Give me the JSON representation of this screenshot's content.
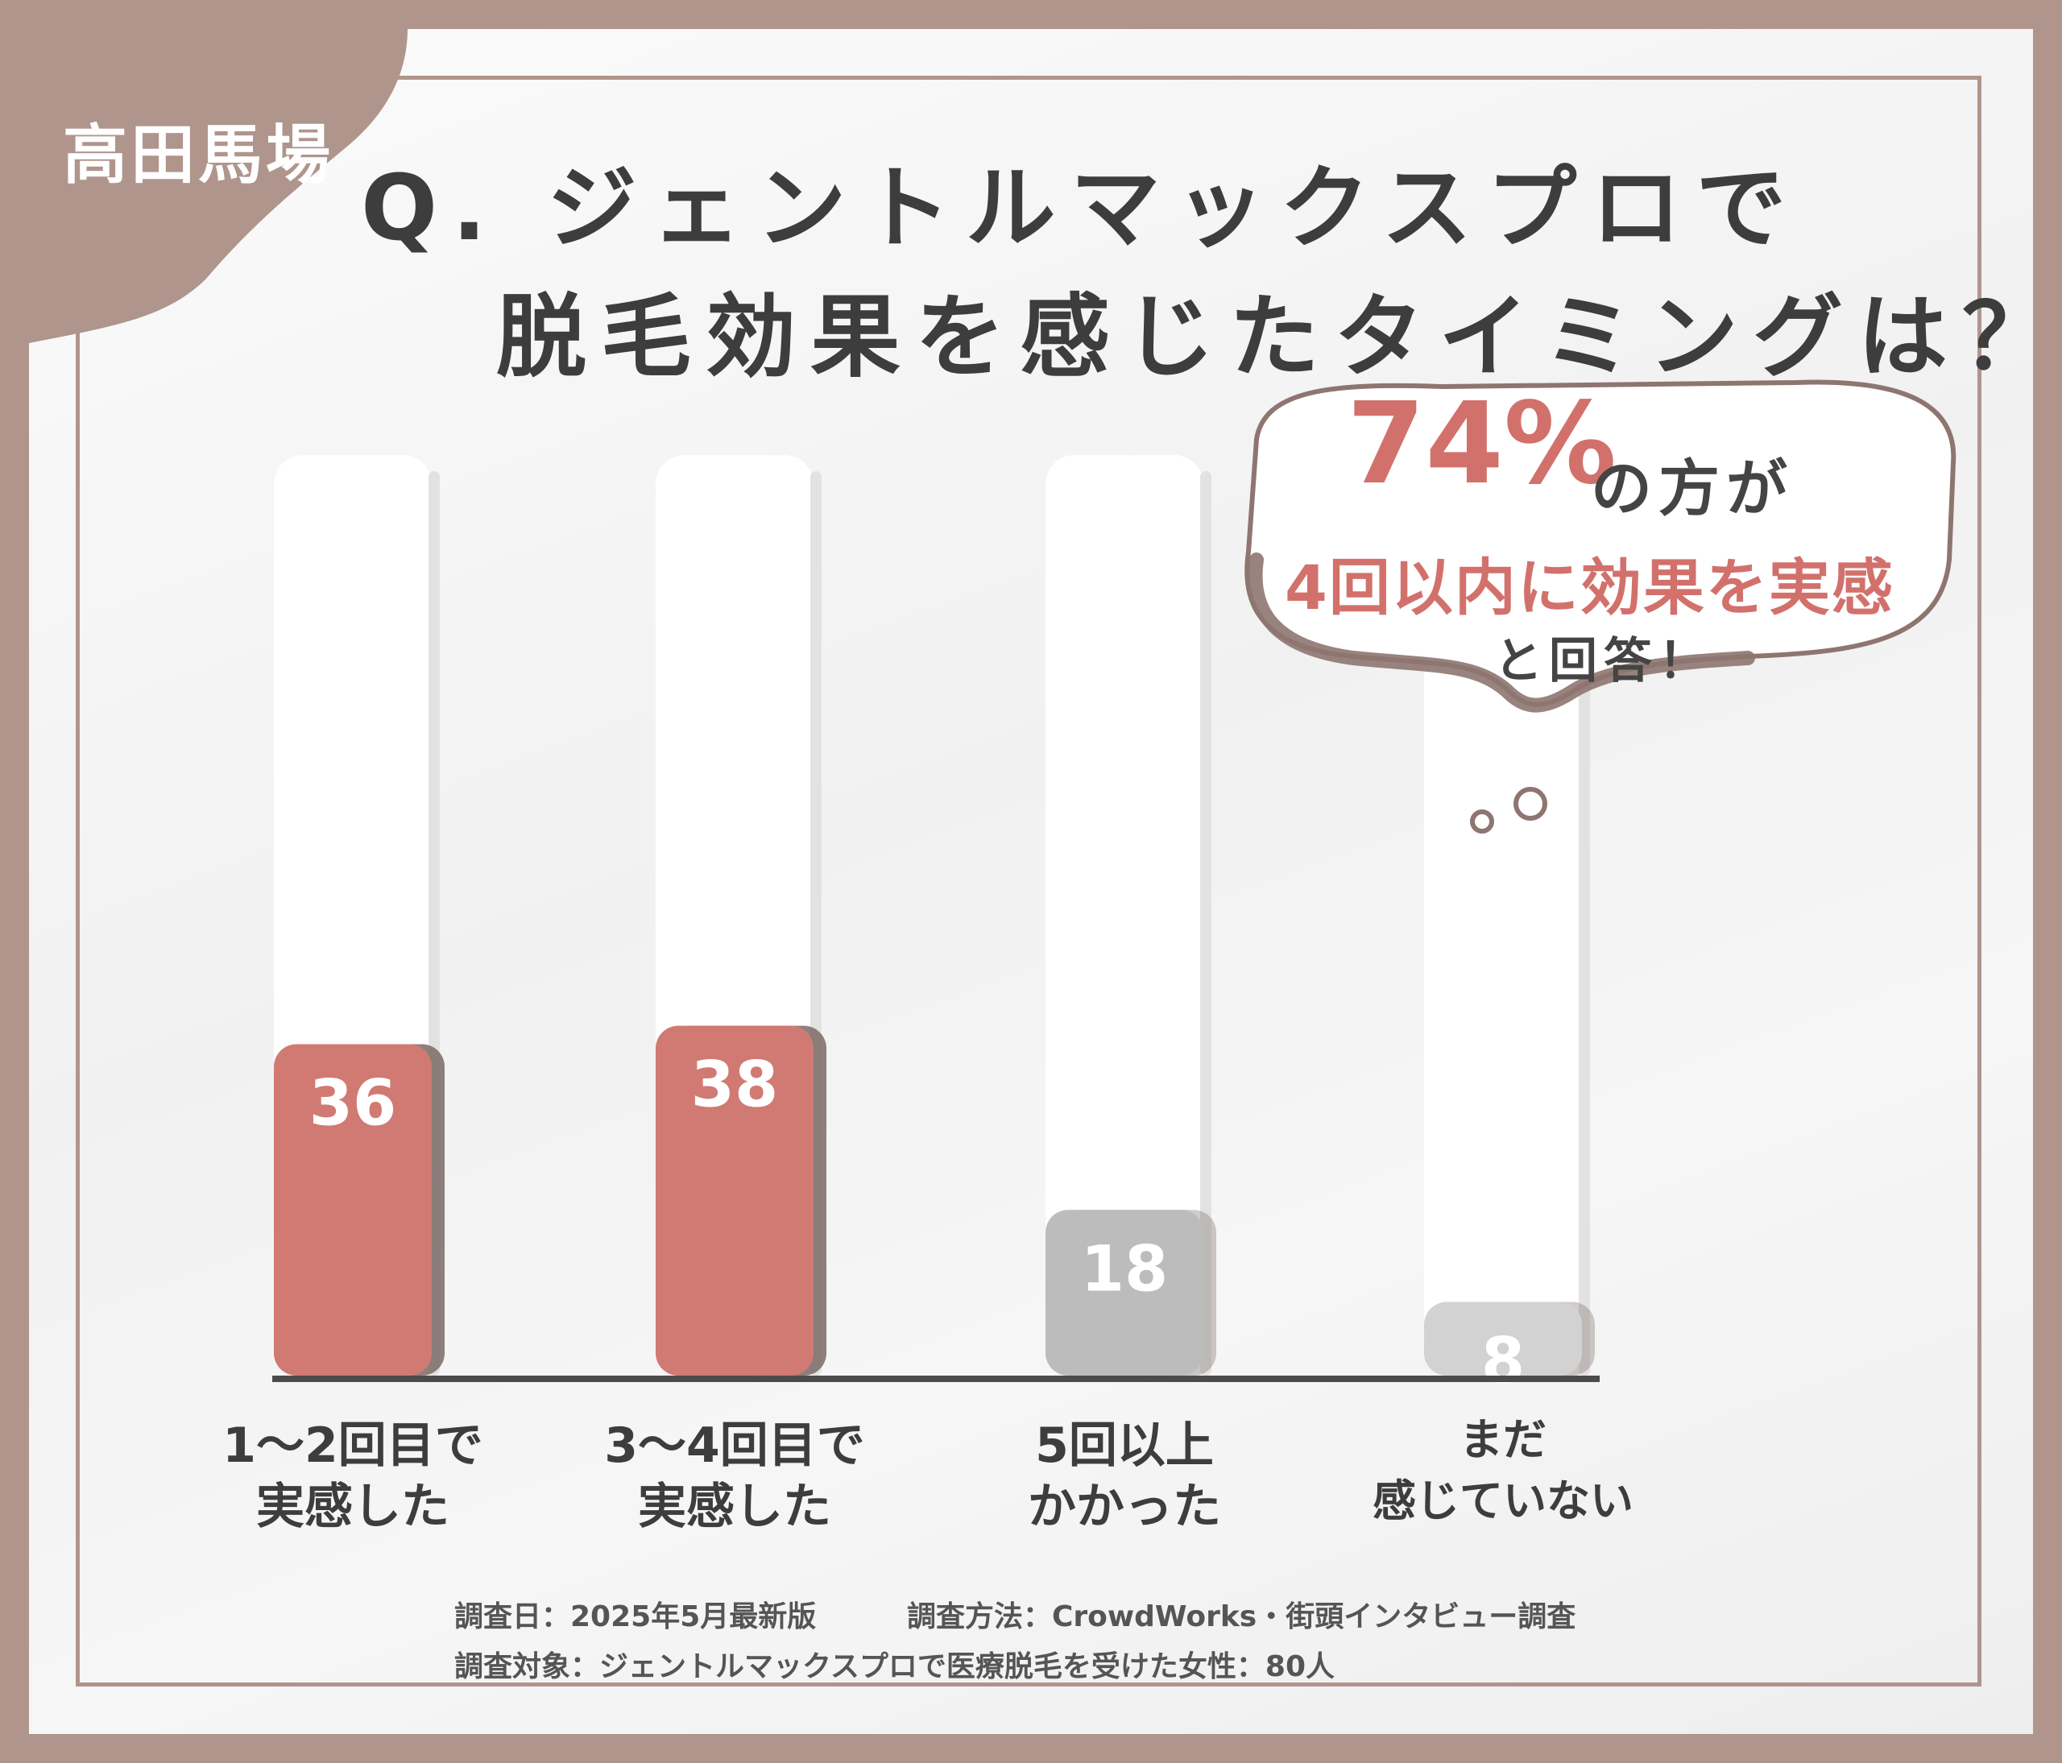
{
  "location_tag": "高田馬場",
  "question": {
    "line1": "Q. ジェントルマックスプロで",
    "line2": "脱毛効果を感じたタイミングは？"
  },
  "callout": {
    "percent": "74%",
    "line1": "の方が",
    "line2": "4回以内に効果を実感",
    "line3": "と回答！"
  },
  "footnotes": {
    "date": "調査日：2025年5月最新版",
    "method": "調査方法：CrowdWorks・街頭インタビュー調査",
    "target": "調査対象：ジェントルマックスプロで医療脱毛を受けた女性：80人"
  },
  "colors": {
    "frame": "#b0958c",
    "highlight_bar": "#d07a73",
    "muted_bar": "#bcbcbc",
    "faint_bar": "#d2d2d2",
    "accent_text": "#d2716c"
  },
  "chart_data": {
    "type": "bar",
    "categories": [
      "1〜2回目で\n実感した",
      "3〜4回目で\n実感した",
      "5回以上\nかかった",
      "まだ\n感じていない"
    ],
    "values": [
      36,
      38,
      18,
      8
    ],
    "data_labels": [
      "36",
      "38",
      "18",
      "8"
    ],
    "bar_colors": [
      "#d07a73",
      "#d07a73",
      "#bcbcbc",
      "#d2d2d2"
    ],
    "title": "",
    "xlabel": "",
    "ylabel": "",
    "ylim": [
      0,
      100
    ],
    "grid": false,
    "legend": "none"
  }
}
